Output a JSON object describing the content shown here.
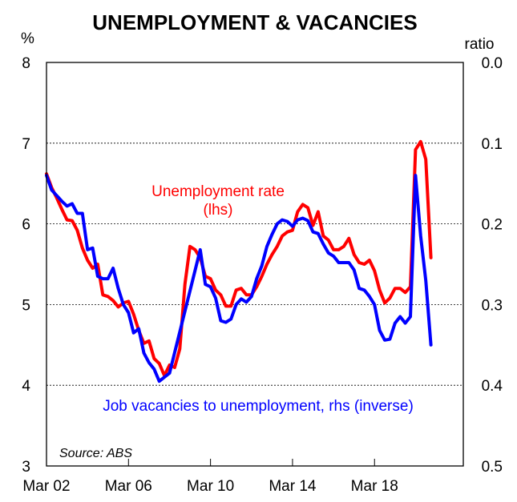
{
  "chart_data": {
    "type": "line",
    "title": "UNEMPLOYMENT & VACANCIES",
    "y_left": {
      "unit": "%",
      "range": [
        3,
        8
      ],
      "ticks": [
        "3",
        "4",
        "5",
        "6",
        "7",
        "8"
      ]
    },
    "y_right": {
      "unit": "ratio",
      "range": [
        0.0,
        0.5
      ],
      "inverted": true,
      "ticks": [
        "0.0",
        "0.1",
        "0.2",
        "0.3",
        "0.4",
        "0.5"
      ]
    },
    "x_axis": {
      "range": [
        2002.17,
        2022.5
      ],
      "ticks": [
        {
          "label": "Mar 02",
          "value": 2002.17
        },
        {
          "label": "Mar 06",
          "value": 2006.17
        },
        {
          "label": "Mar 10",
          "value": 2010.17
        },
        {
          "label": "Mar 14",
          "value": 2014.17
        },
        {
          "label": "Mar 18",
          "value": 2018.17
        }
      ]
    },
    "gridlines": [
      4,
      5,
      6,
      7
    ],
    "series": [
      {
        "name": "Unemployment rate (lhs)",
        "axis": "left",
        "color": "#ff0000",
        "points": [
          [
            2002.17,
            6.62
          ],
          [
            2002.42,
            6.45
          ],
          [
            2002.67,
            6.32
          ],
          [
            2002.92,
            6.18
          ],
          [
            2003.17,
            6.05
          ],
          [
            2003.42,
            6.04
          ],
          [
            2003.67,
            5.92
          ],
          [
            2003.92,
            5.7
          ],
          [
            2004.17,
            5.55
          ],
          [
            2004.42,
            5.45
          ],
          [
            2004.67,
            5.5
          ],
          [
            2004.92,
            5.12
          ],
          [
            2005.17,
            5.1
          ],
          [
            2005.42,
            5.05
          ],
          [
            2005.67,
            4.97
          ],
          [
            2005.92,
            5.02
          ],
          [
            2006.17,
            5.04
          ],
          [
            2006.42,
            4.88
          ],
          [
            2006.67,
            4.68
          ],
          [
            2006.92,
            4.52
          ],
          [
            2007.17,
            4.55
          ],
          [
            2007.42,
            4.33
          ],
          [
            2007.67,
            4.27
          ],
          [
            2007.92,
            4.12
          ],
          [
            2008.17,
            4.25
          ],
          [
            2008.42,
            4.22
          ],
          [
            2008.67,
            4.45
          ],
          [
            2008.92,
            5.25
          ],
          [
            2009.17,
            5.72
          ],
          [
            2009.42,
            5.68
          ],
          [
            2009.67,
            5.58
          ],
          [
            2009.92,
            5.35
          ],
          [
            2010.17,
            5.32
          ],
          [
            2010.42,
            5.18
          ],
          [
            2010.67,
            5.12
          ],
          [
            2010.92,
            4.98
          ],
          [
            2011.17,
            4.98
          ],
          [
            2011.42,
            5.18
          ],
          [
            2011.67,
            5.2
          ],
          [
            2011.92,
            5.12
          ],
          [
            2012.17,
            5.12
          ],
          [
            2012.42,
            5.22
          ],
          [
            2012.67,
            5.35
          ],
          [
            2012.92,
            5.5
          ],
          [
            2013.17,
            5.62
          ],
          [
            2013.42,
            5.72
          ],
          [
            2013.67,
            5.85
          ],
          [
            2013.92,
            5.9
          ],
          [
            2014.17,
            5.92
          ],
          [
            2014.42,
            6.15
          ],
          [
            2014.67,
            6.24
          ],
          [
            2014.92,
            6.2
          ],
          [
            2015.17,
            5.98
          ],
          [
            2015.42,
            6.15
          ],
          [
            2015.67,
            5.85
          ],
          [
            2015.92,
            5.8
          ],
          [
            2016.17,
            5.68
          ],
          [
            2016.42,
            5.68
          ],
          [
            2016.67,
            5.72
          ],
          [
            2016.92,
            5.82
          ],
          [
            2017.17,
            5.62
          ],
          [
            2017.42,
            5.52
          ],
          [
            2017.67,
            5.5
          ],
          [
            2017.92,
            5.55
          ],
          [
            2018.17,
            5.42
          ],
          [
            2018.42,
            5.18
          ],
          [
            2018.67,
            5.02
          ],
          [
            2018.92,
            5.08
          ],
          [
            2019.17,
            5.2
          ],
          [
            2019.42,
            5.2
          ],
          [
            2019.67,
            5.15
          ],
          [
            2019.92,
            5.22
          ],
          [
            2020.17,
            6.92
          ],
          [
            2020.42,
            7.02
          ],
          [
            2020.67,
            6.8
          ],
          [
            2020.92,
            5.58
          ]
        ]
      },
      {
        "name": "Job vacancies to unemployment, rhs (inverse)",
        "axis": "right",
        "color": "#0000ff",
        "points": [
          [
            2002.17,
            0.14
          ],
          [
            2002.42,
            0.158
          ],
          [
            2002.67,
            0.165
          ],
          [
            2002.92,
            0.172
          ],
          [
            2003.17,
            0.178
          ],
          [
            2003.42,
            0.175
          ],
          [
            2003.67,
            0.187
          ],
          [
            2003.92,
            0.187
          ],
          [
            2004.17,
            0.232
          ],
          [
            2004.42,
            0.23
          ],
          [
            2004.67,
            0.265
          ],
          [
            2004.92,
            0.268
          ],
          [
            2005.17,
            0.268
          ],
          [
            2005.42,
            0.255
          ],
          [
            2005.67,
            0.28
          ],
          [
            2005.92,
            0.3
          ],
          [
            2006.17,
            0.31
          ],
          [
            2006.42,
            0.335
          ],
          [
            2006.67,
            0.33
          ],
          [
            2006.92,
            0.36
          ],
          [
            2007.17,
            0.372
          ],
          [
            2007.42,
            0.38
          ],
          [
            2007.67,
            0.395
          ],
          [
            2007.92,
            0.39
          ],
          [
            2008.17,
            0.385
          ],
          [
            2009.67,
            0.232
          ],
          [
            2009.92,
            0.275
          ],
          [
            2010.17,
            0.278
          ],
          [
            2010.42,
            0.292
          ],
          [
            2010.67,
            0.32
          ],
          [
            2010.92,
            0.322
          ],
          [
            2011.17,
            0.318
          ],
          [
            2011.42,
            0.3
          ],
          [
            2011.67,
            0.293
          ],
          [
            2011.92,
            0.297
          ],
          [
            2012.17,
            0.29
          ],
          [
            2012.42,
            0.268
          ],
          [
            2012.67,
            0.252
          ],
          [
            2012.92,
            0.228
          ],
          [
            2013.17,
            0.213
          ],
          [
            2013.42,
            0.2
          ],
          [
            2013.67,
            0.195
          ],
          [
            2013.92,
            0.197
          ],
          [
            2014.17,
            0.203
          ],
          [
            2014.42,
            0.195
          ],
          [
            2014.67,
            0.193
          ],
          [
            2014.92,
            0.196
          ],
          [
            2015.17,
            0.21
          ],
          [
            2015.42,
            0.212
          ],
          [
            2015.67,
            0.225
          ],
          [
            2015.92,
            0.236
          ],
          [
            2016.17,
            0.24
          ],
          [
            2016.42,
            0.248
          ],
          [
            2016.67,
            0.248
          ],
          [
            2016.92,
            0.248
          ],
          [
            2017.17,
            0.257
          ],
          [
            2017.42,
            0.28
          ],
          [
            2017.67,
            0.282
          ],
          [
            2017.92,
            0.29
          ],
          [
            2018.17,
            0.3
          ],
          [
            2018.42,
            0.332
          ],
          [
            2018.67,
            0.344
          ],
          [
            2018.92,
            0.343
          ],
          [
            2019.17,
            0.323
          ],
          [
            2019.42,
            0.315
          ],
          [
            2019.67,
            0.323
          ],
          [
            2019.92,
            0.315
          ],
          [
            2020.17,
            0.14
          ],
          [
            2020.42,
            0.215
          ],
          [
            2020.67,
            0.27
          ],
          [
            2020.92,
            0.35
          ]
        ]
      }
    ],
    "annotations": {
      "unemployment_label": [
        "Unemployment rate",
        "(lhs)"
      ],
      "vacancies_label": "Job vacancies to unemployment, rhs (inverse)",
      "source": "Source: ABS"
    }
  }
}
